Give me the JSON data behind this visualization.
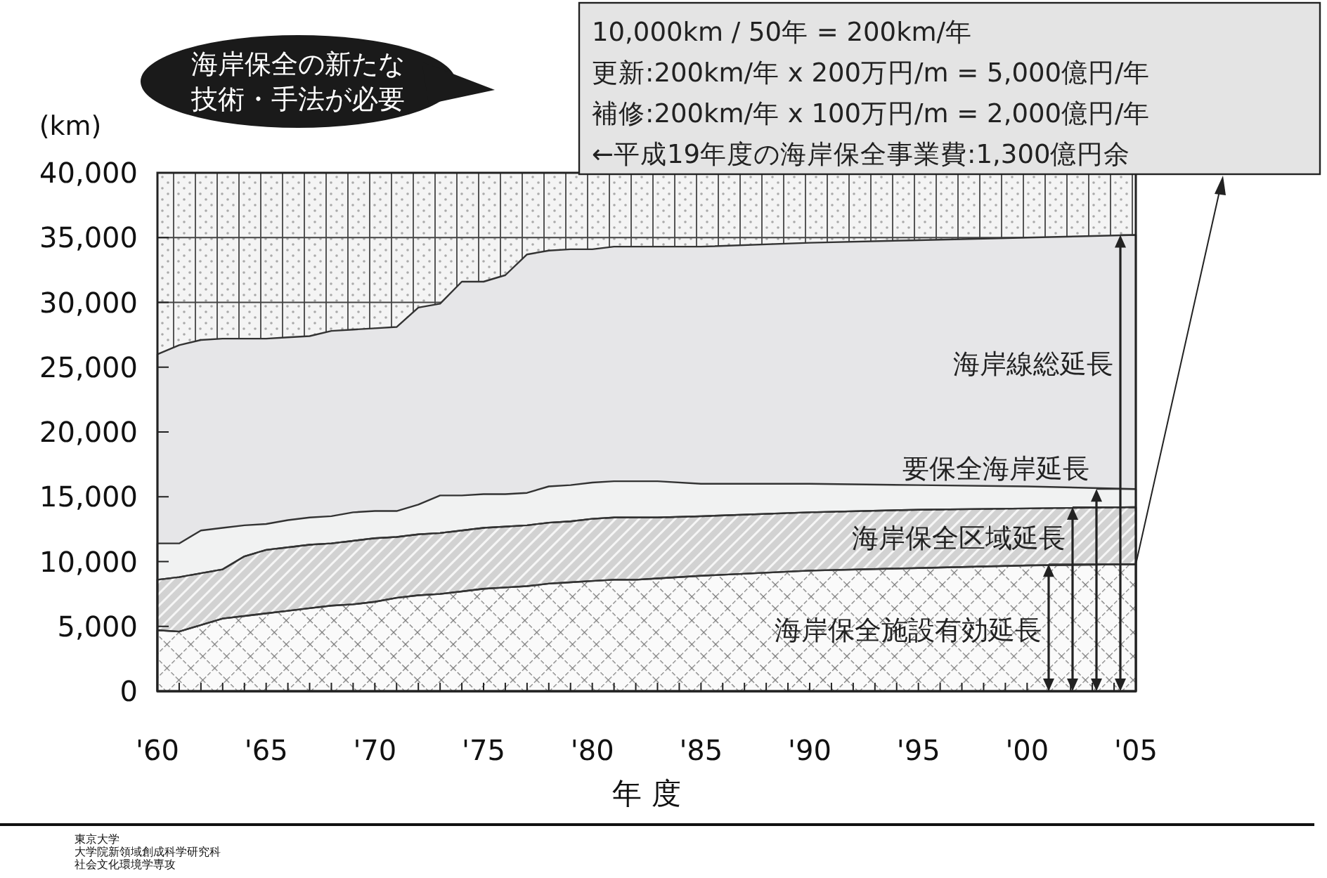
{
  "chart_data": {
    "type": "area",
    "ylabel": "(km)",
    "xlabel": "年 度",
    "x": [
      1960,
      1961,
      1962,
      1963,
      1964,
      1965,
      1966,
      1967,
      1968,
      1969,
      1970,
      1971,
      1972,
      1973,
      1974,
      1975,
      1976,
      1977,
      1978,
      1979,
      1980,
      1981,
      1982,
      1983,
      1985,
      1990,
      1995,
      2000,
      2005
    ],
    "series": [
      {
        "name": "海岸線総延長",
        "color": "#e6e6e8",
        "values": [
          26000,
          26700,
          27100,
          27200,
          27200,
          27200,
          27300,
          27400,
          27800,
          27900,
          28000,
          28100,
          29600,
          29900,
          31600,
          31600,
          32100,
          33700,
          34000,
          34100,
          34100,
          34300,
          34300,
          34300,
          34300,
          34600,
          34800,
          35000,
          35200
        ]
      },
      {
        "name": "要保全海岸延長",
        "color": "#f1f2f2",
        "values": [
          11400,
          11400,
          12400,
          12600,
          12800,
          12900,
          13200,
          13400,
          13500,
          13800,
          13900,
          13900,
          14400,
          15100,
          15100,
          15200,
          15200,
          15300,
          15800,
          15900,
          16100,
          16200,
          16200,
          16200,
          16000,
          16000,
          15900,
          15800,
          15600
        ]
      },
      {
        "name": "海岸保全区域延長",
        "color": "#d2d2d2",
        "values": [
          8600,
          8800,
          9100,
          9400,
          10400,
          10900,
          11100,
          11300,
          11400,
          11600,
          11800,
          11900,
          12100,
          12200,
          12400,
          12600,
          12700,
          12800,
          13000,
          13100,
          13300,
          13400,
          13400,
          13400,
          13500,
          13800,
          14000,
          14100,
          14200
        ]
      },
      {
        "name": "海岸保全施設有効延長",
        "color": "#fafafa",
        "values": [
          4700,
          4600,
          5100,
          5600,
          5800,
          6000,
          6200,
          6400,
          6600,
          6700,
          6900,
          7200,
          7400,
          7500,
          7700,
          7900,
          8000,
          8100,
          8300,
          8400,
          8500,
          8600,
          8600,
          8700,
          8900,
          9300,
          9500,
          9700,
          9800
        ]
      }
    ],
    "xlim": [
      1960,
      2005
    ],
    "xticks": [
      {
        "value": 1960,
        "label": "'60"
      },
      {
        "value": 1961,
        "label": null
      },
      {
        "value": 1962,
        "label": null
      },
      {
        "value": 1963,
        "label": null
      },
      {
        "value": 1964,
        "label": null
      },
      {
        "value": 1965,
        "label": "'65"
      },
      {
        "value": 1966,
        "label": null
      },
      {
        "value": 1967,
        "label": null
      },
      {
        "value": 1968,
        "label": null
      },
      {
        "value": 1969,
        "label": null
      },
      {
        "value": 1970,
        "label": "'70"
      },
      {
        "value": 1971,
        "label": null
      },
      {
        "value": 1972,
        "label": null
      },
      {
        "value": 1973,
        "label": null
      },
      {
        "value": 1974,
        "label": null
      },
      {
        "value": 1975,
        "label": "'75"
      },
      {
        "value": 1976,
        "label": null
      },
      {
        "value": 1977,
        "label": null
      },
      {
        "value": 1978,
        "label": null
      },
      {
        "value": 1979,
        "label": null
      },
      {
        "value": 1980,
        "label": "'80"
      },
      {
        "value": 1981,
        "label": null
      },
      {
        "value": 1982,
        "label": null
      },
      {
        "value": 1983,
        "label": null
      },
      {
        "value": 1984,
        "label": null
      },
      {
        "value": 1985,
        "label": "'85"
      },
      {
        "value": 1986,
        "label": null
      },
      {
        "value": 1987,
        "label": null
      },
      {
        "value": 1988,
        "label": null
      },
      {
        "value": 1989,
        "label": null
      },
      {
        "value": 1990,
        "label": "'90"
      },
      {
        "value": 1991,
        "label": null
      },
      {
        "value": 1992,
        "label": null
      },
      {
        "value": 1993,
        "label": null
      },
      {
        "value": 1994,
        "label": null
      },
      {
        "value": 1995,
        "label": "'95"
      },
      {
        "value": 1996,
        "label": null
      },
      {
        "value": 1997,
        "label": null
      },
      {
        "value": 1998,
        "label": null
      },
      {
        "value": 1999,
        "label": null
      },
      {
        "value": 2000,
        "label": "'00"
      },
      {
        "value": 2001,
        "label": null
      },
      {
        "value": 2002,
        "label": null
      },
      {
        "value": 2003,
        "label": null
      },
      {
        "value": 2004,
        "label": null
      },
      {
        "value": 2005,
        "label": "'05"
      }
    ],
    "ylim": [
      0,
      40000
    ],
    "yticks": [
      0,
      {
        "value": 5000,
        "label": "5,000"
      },
      {
        "value": 10000,
        "label": "10,000"
      },
      {
        "value": 15000,
        "label": "15,000"
      },
      {
        "value": 20000,
        "label": "20,000"
      },
      {
        "value": 25000,
        "label": "25,000"
      },
      {
        "value": 30000,
        "label": "30,000"
      },
      {
        "value": 35000,
        "label": "35,000"
      },
      {
        "value": 40000,
        "label": "40,000"
      }
    ],
    "grid": "y",
    "annotations": [
      "海岸保全の新たな技術・手法が必要",
      "10,000km / 50年 = 200km/年",
      "更新:200km/年 x 200万円/m = 5,000億円/年",
      "補修:200km/年 x 100万円/m = 2,000億円/年",
      "←平成19年度の海岸保全事業費:1,300億円余",
      "東京大学",
      "大学院新領域創成科学研究科",
      "社会文化環境学専攻"
    ]
  }
}
